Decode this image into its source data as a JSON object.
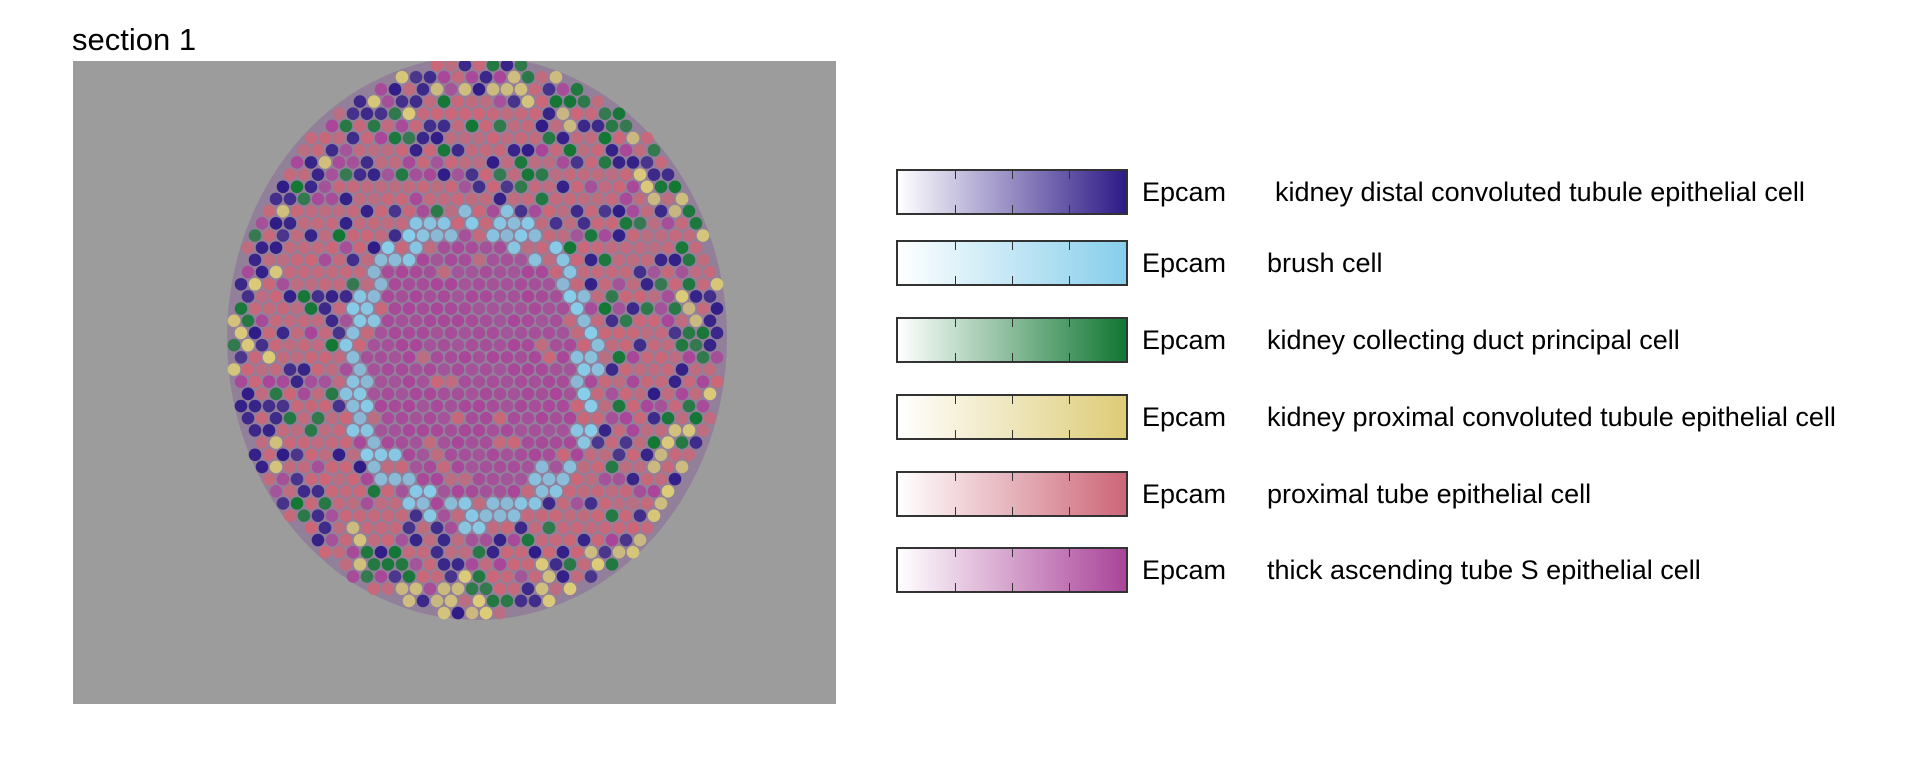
{
  "chart_data": {
    "type": "scatter",
    "title": "section 1",
    "legend_placement": "right",
    "legend": [
      {
        "gene": "Epcam",
        "cell_type": "kidney distal convoluted tubule epithelial cell",
        "color": "#2e1a87"
      },
      {
        "gene": "Epcam",
        "cell_type": "brush cell",
        "color": "#87ceeb"
      },
      {
        "gene": "Epcam",
        "cell_type": "kidney collecting duct principal cell",
        "color": "#117733"
      },
      {
        "gene": "Epcam",
        "cell_type": "kidney proximal convoluted tubule epithelial cell",
        "color": "#ddcc77"
      },
      {
        "gene": "Epcam",
        "cell_type": "proximal tube epithelial cell",
        "color": "#cc6677"
      },
      {
        "gene": "Epcam",
        "cell_type": "thick ascending tube S epithelial cell",
        "color": "#aa4499"
      }
    ]
  }
}
